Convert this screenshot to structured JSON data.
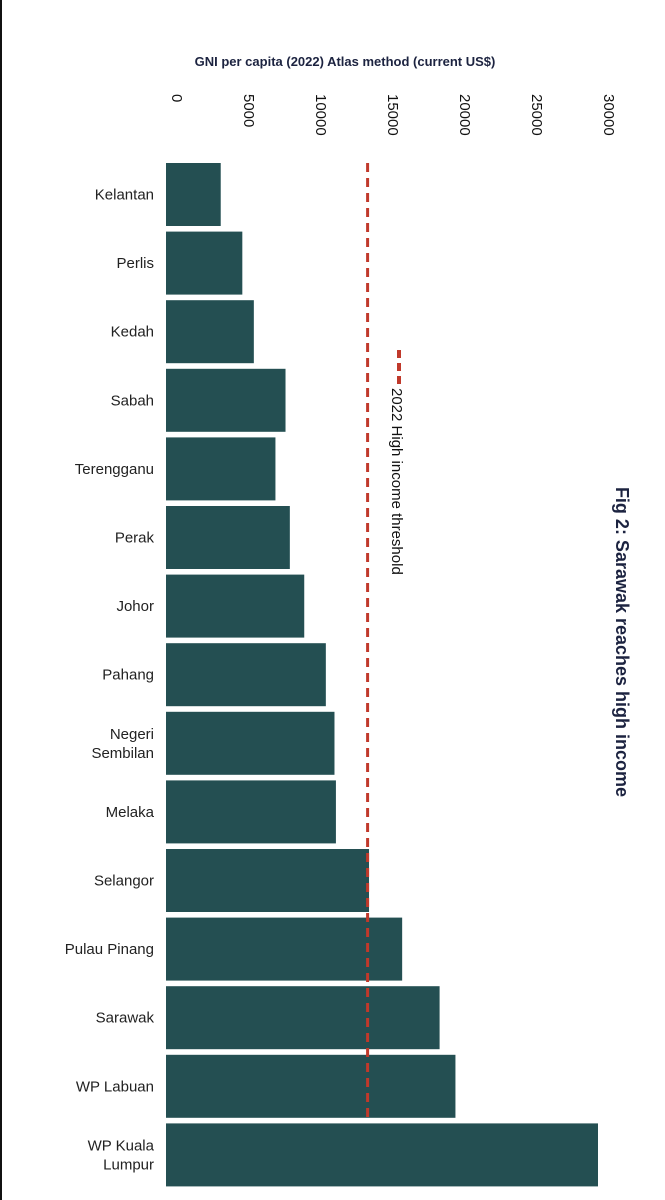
{
  "chart_data": {
    "type": "bar",
    "orientation": "horizontal",
    "title": "Fig 2: Sarawak reaches high income",
    "xlabel": "GNI per capita (2022) Atlas method (current US$)",
    "ylabel": "",
    "xlim": [
      0,
      30000
    ],
    "xticks": [
      "0",
      "5000",
      "10000",
      "15000",
      "20000",
      "25000",
      "30000"
    ],
    "categories": [
      [
        "Kelantan"
      ],
      [
        "Perlis"
      ],
      [
        "Kedah"
      ],
      [
        "Sabah"
      ],
      [
        "Terengganu"
      ],
      [
        "Perak"
      ],
      [
        "Johor"
      ],
      [
        "Pahang"
      ],
      [
        "Negeri",
        "Sembilan"
      ],
      [
        "Melaka"
      ],
      [
        "Selangor"
      ],
      [
        "Pulau Pinang"
      ],
      [
        "Sarawak"
      ],
      [
        "WP Labuan"
      ],
      [
        "WP Kuala",
        "Lumpur"
      ]
    ],
    "values": [
      3800,
      5300,
      6100,
      8300,
      7600,
      8600,
      9600,
      11100,
      11700,
      11800,
      14100,
      16400,
      19000,
      20100,
      30000
    ],
    "reference_line": {
      "value": 14000,
      "label": "2022 High income threshold",
      "color": "#c0392b"
    },
    "bar_color": "#244f52",
    "grid": false
  }
}
